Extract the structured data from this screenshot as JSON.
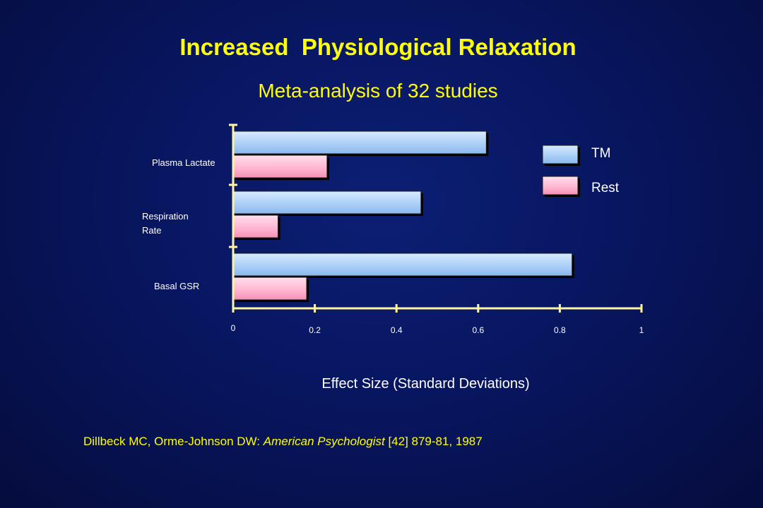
{
  "title": "Increased  Physiological Relaxation",
  "subtitle": "Meta-analysis of 32 studies",
  "citation": {
    "authors": "Dillbeck MC, Orme-Johnson DW: ",
    "journal": "American Psychologist",
    "details": " [42] 879-81, 1987"
  },
  "colors": {
    "tm": "#a9cdf7",
    "rest": "#ffb3cf",
    "axis": "#fff5a0",
    "title": "#ffff00"
  },
  "chart_data": {
    "type": "bar",
    "orientation": "horizontal",
    "title": "Increased  Physiological Relaxation",
    "subtitle": "Meta-analysis of 32 studies",
    "xlabel": "Effect Size (Standard Deviations)",
    "ylabel": "",
    "xlim": [
      0,
      1
    ],
    "x_ticks": [
      "0",
      "0.2",
      "0.4",
      "0.6",
      "0.8",
      "1"
    ],
    "categories": [
      "Plasma Lactate",
      "Respiration Rate",
      "Basal GSR"
    ],
    "category_lines": [
      [
        "Plasma Lactate"
      ],
      [
        "Respiration",
        "Rate"
      ],
      [
        "Basal GSR"
      ]
    ],
    "series": [
      {
        "name": "TM",
        "values": [
          0.62,
          0.46,
          0.83
        ]
      },
      {
        "name": "Rest",
        "values": [
          0.23,
          0.11,
          0.18
        ]
      }
    ],
    "legend": "top-right",
    "grid": false
  }
}
